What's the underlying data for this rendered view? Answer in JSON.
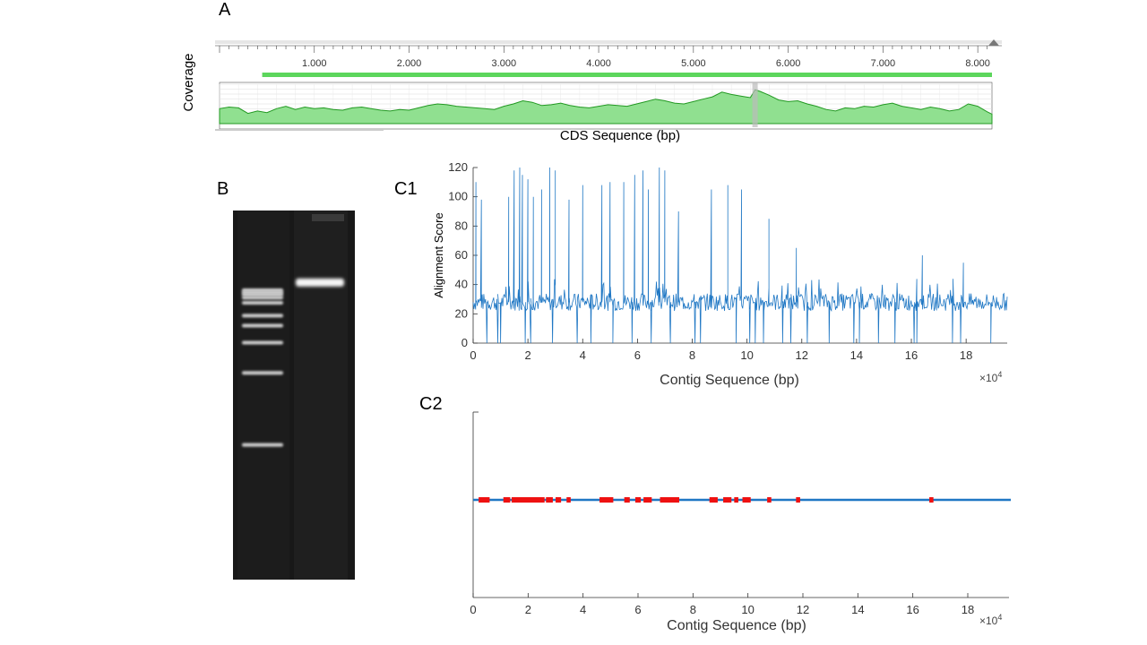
{
  "labels": {
    "a": "A",
    "b": "B",
    "c1": "C1",
    "c2": "C2"
  },
  "chart_data": [
    {
      "id": "A",
      "type": "area",
      "xlabel": "CDS Sequence (bp)",
      "ylabel": "Coverage",
      "ruler_ticks": [
        "1.000",
        "2.000",
        "3.000",
        "4.000",
        "5.000",
        "6.000",
        "7.000",
        "8.000"
      ],
      "xlim": [
        0,
        8150
      ],
      "coverage_annotation": {
        "start": 450,
        "end": 8150
      },
      "highlight_x": 5650,
      "x": [
        0,
        100,
        200,
        300,
        400,
        500,
        600,
        700,
        800,
        900,
        1000,
        1100,
        1200,
        1300,
        1400,
        1500,
        1600,
        1700,
        1800,
        1900,
        2000,
        2100,
        2200,
        2300,
        2400,
        2500,
        2600,
        2700,
        2800,
        2900,
        3000,
        3100,
        3200,
        3300,
        3400,
        3500,
        3600,
        3700,
        3800,
        3900,
        4000,
        4100,
        4200,
        4300,
        4400,
        4500,
        4600,
        4700,
        4800,
        4900,
        5000,
        5100,
        5200,
        5300,
        5400,
        5500,
        5600,
        5650,
        5700,
        5800,
        5900,
        6000,
        6100,
        6200,
        6300,
        6400,
        6500,
        6600,
        6700,
        6800,
        6900,
        7000,
        7100,
        7200,
        7300,
        7400,
        7500,
        7600,
        7700,
        7800,
        7900,
        8000,
        8100,
        8150
      ],
      "y": [
        0.38,
        0.42,
        0.4,
        0.26,
        0.32,
        0.28,
        0.38,
        0.44,
        0.36,
        0.42,
        0.38,
        0.4,
        0.36,
        0.34,
        0.4,
        0.42,
        0.38,
        0.34,
        0.32,
        0.36,
        0.34,
        0.4,
        0.46,
        0.5,
        0.48,
        0.44,
        0.42,
        0.4,
        0.38,
        0.36,
        0.44,
        0.5,
        0.58,
        0.54,
        0.46,
        0.48,
        0.52,
        0.46,
        0.42,
        0.4,
        0.44,
        0.48,
        0.46,
        0.44,
        0.5,
        0.56,
        0.62,
        0.58,
        0.52,
        0.5,
        0.56,
        0.62,
        0.68,
        0.8,
        0.74,
        0.7,
        0.66,
        0.86,
        0.82,
        0.72,
        0.6,
        0.56,
        0.58,
        0.5,
        0.44,
        0.36,
        0.32,
        0.4,
        0.38,
        0.44,
        0.42,
        0.48,
        0.52,
        0.44,
        0.4,
        0.36,
        0.42,
        0.38,
        0.32,
        0.36,
        0.5,
        0.44,
        0.3,
        0.24
      ]
    },
    {
      "id": "B",
      "type": "other",
      "ladder_bands": [
        0.216,
        0.222,
        0.228,
        0.236,
        0.25,
        0.285,
        0.312,
        0.358,
        0.44,
        0.635
      ],
      "sample_band": 0.195
    },
    {
      "id": "C1",
      "type": "line",
      "xlabel": "Contig Sequence (bp)",
      "ylabel": "Alignment Score",
      "x_scale_label": "×10",
      "x_scale_exponent": "4",
      "xlim": [
        0,
        19.5
      ],
      "ylim": [
        0,
        120
      ],
      "xticks": [
        0,
        2,
        4,
        6,
        8,
        10,
        12,
        14,
        16,
        18
      ],
      "yticks": [
        0,
        20,
        40,
        60,
        80,
        100,
        120
      ],
      "baseline": 28,
      "spikes": [
        {
          "x": 0.1,
          "y": 110
        },
        {
          "x": 0.3,
          "y": 98
        },
        {
          "x": 1.3,
          "y": 100
        },
        {
          "x": 1.5,
          "y": 118
        },
        {
          "x": 1.7,
          "y": 120
        },
        {
          "x": 1.8,
          "y": 115
        },
        {
          "x": 2.0,
          "y": 112
        },
        {
          "x": 2.2,
          "y": 100
        },
        {
          "x": 2.5,
          "y": 105
        },
        {
          "x": 2.8,
          "y": 120
        },
        {
          "x": 3.0,
          "y": 118
        },
        {
          "x": 3.5,
          "y": 98
        },
        {
          "x": 4.0,
          "y": 108
        },
        {
          "x": 4.7,
          "y": 108
        },
        {
          "x": 5.0,
          "y": 110
        },
        {
          "x": 5.5,
          "y": 110
        },
        {
          "x": 5.9,
          "y": 115
        },
        {
          "x": 6.2,
          "y": 118
        },
        {
          "x": 6.4,
          "y": 105
        },
        {
          "x": 6.8,
          "y": 120
        },
        {
          "x": 7.0,
          "y": 118
        },
        {
          "x": 7.5,
          "y": 90
        },
        {
          "x": 8.7,
          "y": 105
        },
        {
          "x": 9.3,
          "y": 108
        },
        {
          "x": 9.8,
          "y": 105
        },
        {
          "x": 10.8,
          "y": 85
        },
        {
          "x": 11.8,
          "y": 65
        },
        {
          "x": 16.4,
          "y": 60
        },
        {
          "x": 17.9,
          "y": 55
        }
      ],
      "dips": [
        0.5,
        0.9,
        1.0,
        1.9,
        2.1,
        2.9,
        3.8,
        4.3,
        5.1,
        5.8,
        6.5,
        7.2,
        8.1,
        8.3,
        9.6,
        10.1,
        10.3,
        10.6,
        11.3,
        11.6,
        12.2,
        13.0,
        13.9,
        14.1,
        14.8,
        15.4,
        16.1,
        16.2,
        17.5,
        17.8,
        18.9
      ]
    },
    {
      "id": "C2",
      "type": "scatter",
      "xlabel": "Contig Sequence (bp)",
      "x_scale_label": "×10",
      "x_scale_exponent": "4",
      "xlim": [
        0,
        19.5
      ],
      "xticks": [
        0,
        2,
        4,
        6,
        8,
        10,
        12,
        14,
        16,
        18
      ],
      "segments": [
        [
          0.2,
          0.6
        ],
        [
          1.1,
          1.35
        ],
        [
          1.4,
          2.6
        ],
        [
          2.65,
          2.9
        ],
        [
          3.0,
          3.2
        ],
        [
          3.4,
          3.55
        ],
        [
          4.6,
          5.1
        ],
        [
          5.5,
          5.7
        ],
        [
          5.9,
          6.1
        ],
        [
          6.2,
          6.5
        ],
        [
          6.8,
          7.5
        ],
        [
          8.6,
          8.9
        ],
        [
          9.1,
          9.4
        ],
        [
          9.5,
          9.65
        ],
        [
          9.8,
          10.1
        ],
        [
          10.7,
          10.85
        ],
        [
          11.75,
          11.9
        ],
        [
          16.6,
          16.75
        ]
      ]
    }
  ]
}
